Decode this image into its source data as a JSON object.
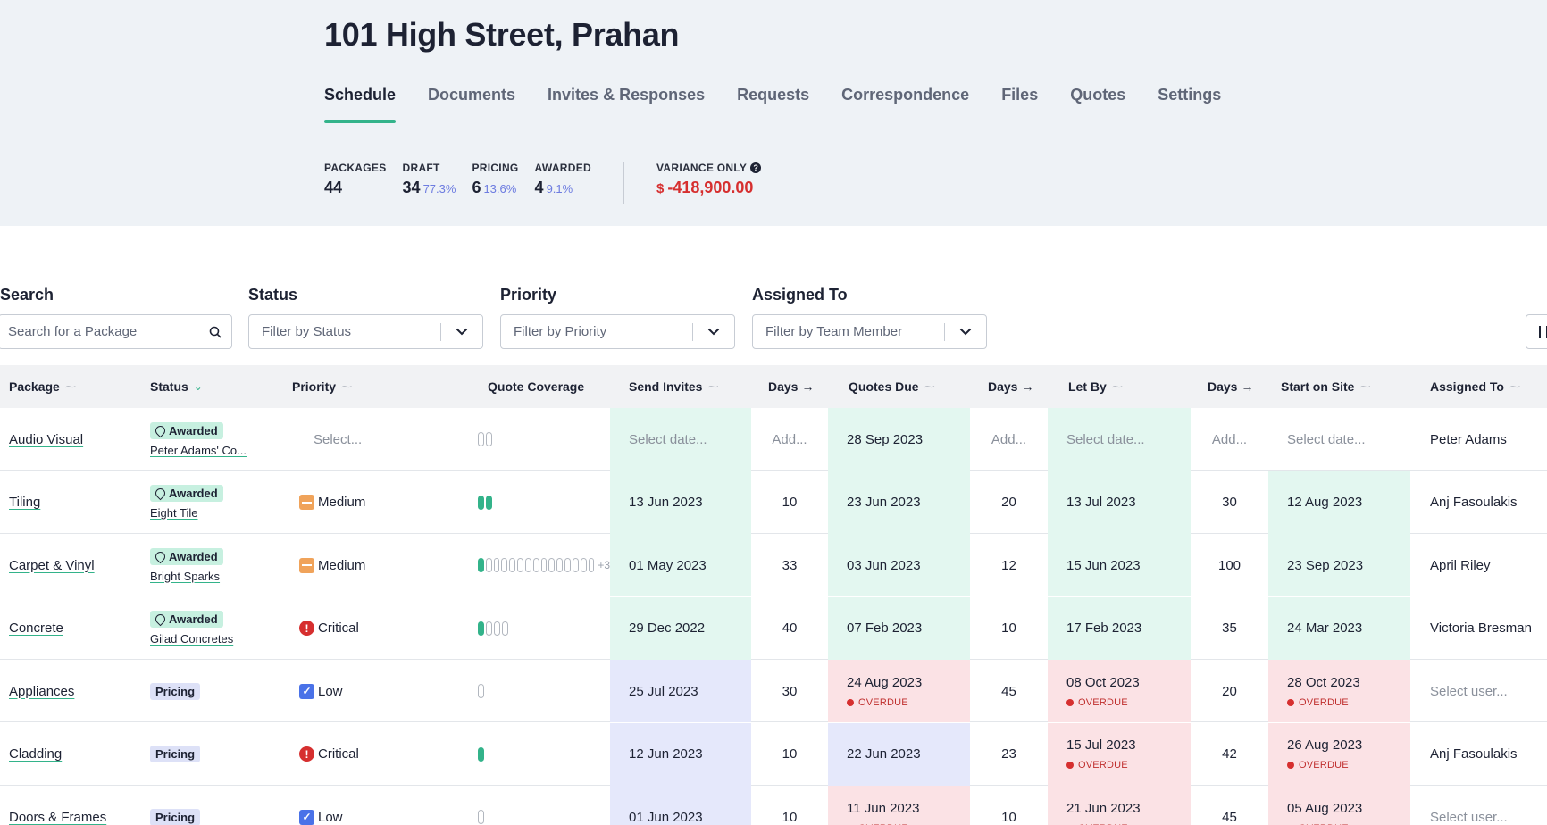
{
  "project": {
    "title": "101 High Street, Prahan"
  },
  "tabs": [
    {
      "label": "Schedule",
      "active": true
    },
    {
      "label": "Documents"
    },
    {
      "label": "Invites & Responses"
    },
    {
      "label": "Requests"
    },
    {
      "label": "Correspondence"
    },
    {
      "label": "Files"
    },
    {
      "label": "Quotes"
    },
    {
      "label": "Settings"
    }
  ],
  "stats": {
    "packages": {
      "label": "PACKAGES",
      "value": "44"
    },
    "draft": {
      "label": "DRAFT",
      "value": "34",
      "pct": "77.3%"
    },
    "pricing": {
      "label": "PRICING",
      "value": "6",
      "pct": "13.6%"
    },
    "awarded": {
      "label": "AWARDED",
      "value": "4",
      "pct": "9.1%"
    },
    "variance": {
      "label": "VARIANCE ONLY",
      "currency": "$",
      "value": "-418,900.00",
      "info_icon": "question-circle-icon"
    }
  },
  "filters": {
    "search": {
      "label": "Search",
      "placeholder": "Search for a Package"
    },
    "status": {
      "label": "Status",
      "placeholder": "Filter by Status"
    },
    "priority": {
      "label": "Priority",
      "placeholder": "Filter by Priority"
    },
    "assigned": {
      "label": "Assigned To",
      "placeholder": "Filter by Team Member"
    }
  },
  "columns": {
    "package": "Package",
    "status": "Status",
    "priority": "Priority",
    "coverage": "Quote Coverage",
    "send_invites": "Send Invites",
    "days1": "Days",
    "quotes_due": "Quotes Due",
    "days2": "Days",
    "let_by": "Let By",
    "days3": "Days",
    "start_on_site": "Start on Site",
    "assigned_to": "Assigned To"
  },
  "placeholders": {
    "select": "Select...",
    "select_date": "Select date...",
    "add": "Add...",
    "select_user": "Select user..."
  },
  "overdue_label": "OVERDUE",
  "colors": {
    "accent": "#33b38a",
    "overdue": "#d62f2f",
    "pct": "#6d7ce0"
  },
  "rows": [
    {
      "package": "Audio Visual",
      "status": "Awarded",
      "supplier": "Peter Adams' Co...",
      "priority": null,
      "coverage": {
        "filled": 0,
        "empty": 2,
        "more": ""
      },
      "send_invites": null,
      "days1": null,
      "quotes_due": "28 Sep 2023",
      "days2": null,
      "let_by": null,
      "days3": null,
      "start_on_site": null,
      "assigned_to": "Peter Adams"
    },
    {
      "package": "Tiling",
      "status": "Awarded",
      "supplier": "Eight Tile",
      "priority": "Medium",
      "coverage": {
        "filled": 2,
        "empty": 0,
        "more": ""
      },
      "send_invites": "13 Jun 2023",
      "days1": "10",
      "quotes_due": "23 Jun 2023",
      "days2": "20",
      "let_by": "13 Jul 2023",
      "days3": "30",
      "start_on_site": "12 Aug 2023",
      "assigned_to": "Anj Fasoulakis"
    },
    {
      "package": "Carpet & Vinyl",
      "status": "Awarded",
      "supplier": "Bright Sparks",
      "priority": "Medium",
      "coverage": {
        "filled": 1,
        "empty": 14,
        "more": "+3"
      },
      "send_invites": "01 May 2023",
      "days1": "33",
      "quotes_due": "03 Jun 2023",
      "days2": "12",
      "let_by": "15 Jun 2023",
      "days3": "100",
      "start_on_site": "23 Sep 2023",
      "assigned_to": "April Riley"
    },
    {
      "package": "Concrete",
      "status": "Awarded",
      "supplier": "Gilad Concretes",
      "priority": "Critical",
      "coverage": {
        "filled": 1,
        "empty": 3,
        "more": ""
      },
      "send_invites": "29 Dec 2022",
      "days1": "40",
      "quotes_due": "07 Feb 2023",
      "days2": "10",
      "let_by": "17 Feb 2023",
      "days3": "35",
      "start_on_site": "24 Mar 2023",
      "assigned_to": "Victoria Bresman"
    },
    {
      "package": "Appliances",
      "status": "Pricing",
      "supplier": "",
      "priority": "Low",
      "coverage": {
        "filled": 0,
        "empty": 1,
        "more": ""
      },
      "send_invites": "25 Jul 2023",
      "days1": "30",
      "quotes_due": "24 Aug 2023",
      "quotes_due_overdue": true,
      "days2": "45",
      "let_by": "08 Oct 2023",
      "let_by_overdue": true,
      "days3": "20",
      "start_on_site": "28 Oct 2023",
      "start_overdue": true,
      "assigned_to": null
    },
    {
      "package": "Cladding",
      "status": "Pricing",
      "supplier": "",
      "priority": "Critical",
      "coverage": {
        "filled": 1,
        "empty": 0,
        "more": ""
      },
      "send_invites": "12 Jun 2023",
      "days1": "10",
      "quotes_due": "22 Jun 2023",
      "days2": "23",
      "let_by": "15 Jul 2023",
      "let_by_overdue": true,
      "days3": "42",
      "start_on_site": "26 Aug 2023",
      "start_overdue": true,
      "assigned_to": "Anj Fasoulakis"
    },
    {
      "package": "Doors & Frames",
      "status": "Pricing",
      "supplier": "",
      "priority": "Low",
      "coverage": {
        "filled": 0,
        "empty": 1,
        "more": ""
      },
      "send_invites": "01 Jun 2023",
      "days1": "10",
      "quotes_due": "11 Jun 2023",
      "quotes_due_overdue": true,
      "days2": "10",
      "let_by": "21 Jun 2023",
      "let_by_overdue": true,
      "days3": "45",
      "start_on_site": "05 Aug 2023",
      "start_overdue": true,
      "assigned_to": null
    }
  ]
}
